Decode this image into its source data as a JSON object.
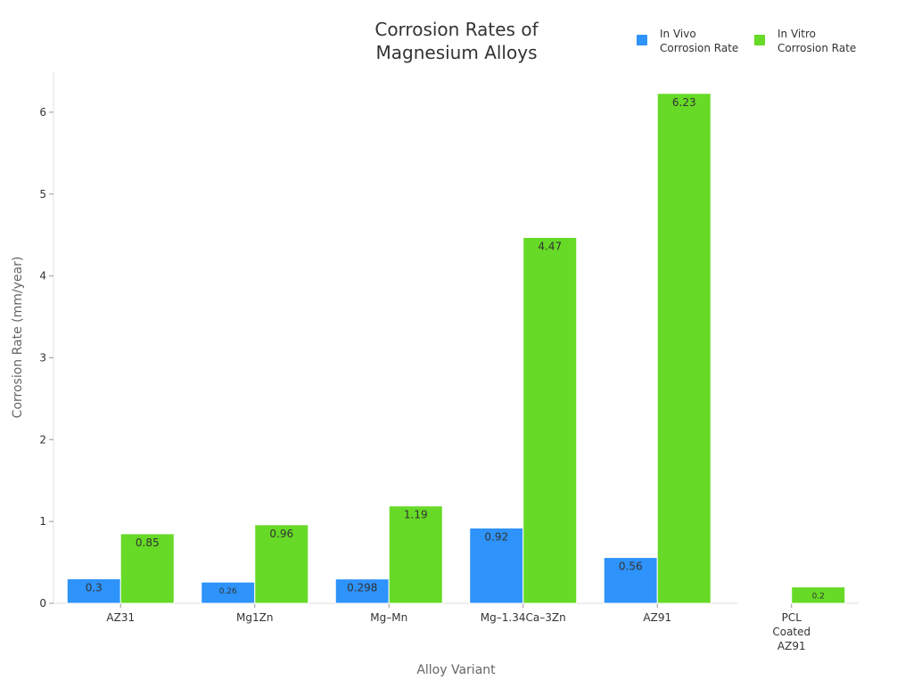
{
  "chart_data": {
    "type": "bar",
    "title": [
      "Corrosion Rates of",
      "Magnesium Alloys"
    ],
    "xlabel": "Alloy Variant",
    "ylabel": "Corrosion Rate (mm/year)",
    "ylim": [
      0,
      6.5
    ],
    "yticks": [
      0,
      1,
      2,
      3,
      4,
      5,
      6
    ],
    "categories": [
      [
        "AZ31"
      ],
      [
        "Mg1Zn"
      ],
      [
        "Mg–Mn"
      ],
      [
        "Mg–1.34Ca–3Zn"
      ],
      [
        "AZ91"
      ],
      [
        "PCL",
        "Coated",
        "AZ91"
      ]
    ],
    "series": [
      {
        "name": [
          "In Vivo",
          "Corrosion Rate"
        ],
        "color": "#2e93fa",
        "values": [
          0.3,
          0.26,
          0.298,
          0.92,
          0.56,
          0.01
        ],
        "labels": [
          "0.3",
          "0.26",
          "0.298",
          "0.92",
          "0.56",
          ""
        ]
      },
      {
        "name": [
          "In Vitro",
          "Corrosion Rate"
        ],
        "color": "#66da26",
        "values": [
          0.85,
          0.96,
          1.19,
          4.47,
          6.23,
          0.2
        ],
        "labels": [
          "0.85",
          "0.96",
          "1.19",
          "4.47",
          "6.23",
          "0.2"
        ]
      }
    ],
    "legend_position": "top-right",
    "grid": false
  }
}
